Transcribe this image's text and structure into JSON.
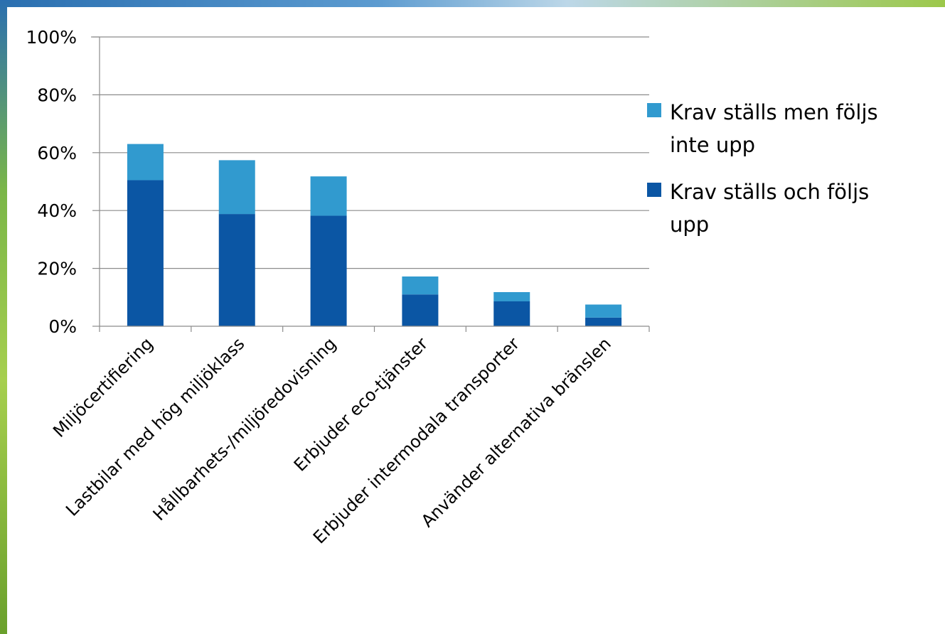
{
  "chart_data": {
    "type": "bar",
    "stacked": true,
    "categories": [
      "Miljöcertifiering",
      "Lastbilar med hög miljöklass",
      "Hållbarhets-/miljöredovisning",
      "Erbjuder eco-tjänster",
      "Erbjuder intermodala transporter",
      "Använder alternativa bränslen"
    ],
    "series": [
      {
        "name": "Krav ställs och följs upp",
        "legend_lines": [
          "Krav ställs och följs",
          "upp"
        ],
        "color": "#0b56a4",
        "values": [
          50.5,
          38.8,
          38.2,
          11.0,
          8.6,
          3.0
        ]
      },
      {
        "name": "Krav ställs men följs inte upp",
        "legend_lines": [
          "Krav ställs men följs",
          "inte upp"
        ],
        "color": "#319acf",
        "values": [
          12.5,
          18.6,
          13.6,
          6.2,
          3.2,
          4.5
        ]
      }
    ],
    "ylim": [
      0,
      100
    ],
    "yticks": [
      "0%",
      "20%",
      "40%",
      "60%",
      "80%",
      "100%"
    ],
    "xlabel": "",
    "ylabel": "",
    "grid": true,
    "legend_position": "right"
  }
}
